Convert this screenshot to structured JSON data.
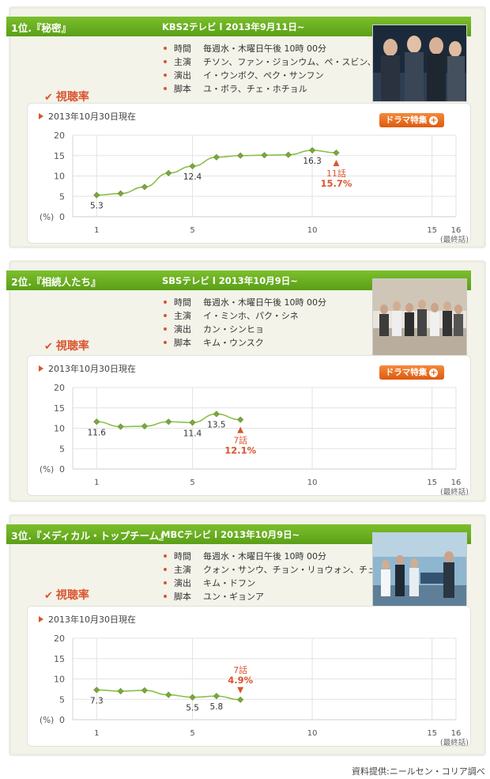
{
  "shows": [
    {
      "rank_title": "1位.『秘密』",
      "network": "KBS2テレビ l 2013年9月11日~",
      "info": [
        {
          "key": "時間",
          "value": "毎週水・木曜日午後 10時 00分"
        },
        {
          "key": "主演",
          "value": "チソン、ファン・ジョンウム、ペ・スビン、イ・ダヒ"
        },
        {
          "key": "演出",
          "value": "イ・ウンボク、ペク・サンフン"
        },
        {
          "key": "脚本",
          "value": "ユ・ボラ、チェ・ホチョル"
        }
      ],
      "rating_label": "視聴率",
      "as_of": "2013年10月30日現在",
      "feature_button": "ドラマ特集",
      "colors": {
        "accent": "#d9552f",
        "line": "#8bbf4a",
        "marker": "#7aa83a"
      }
    },
    {
      "rank_title": "2位.『相続人たち』",
      "network": "SBSテレビ l 2013年10月9日~",
      "info": [
        {
          "key": "時間",
          "value": "毎週水・木曜日午後 10時 00分"
        },
        {
          "key": "主演",
          "value": "イ・ミンホ、パク・シネ"
        },
        {
          "key": "演出",
          "value": "カン・シンヒョ"
        },
        {
          "key": "脚本",
          "value": "キム・ウンスク"
        }
      ],
      "rating_label": "視聴率",
      "as_of": "2013年10月30日現在",
      "feature_button": "ドラマ特集",
      "colors": {
        "accent": "#d9552f",
        "line": "#8bbf4a",
        "marker": "#7aa83a"
      }
    },
    {
      "rank_title": "3位.『メディカル・トップチーム』",
      "network": "MBCテレビ l 2013年10月9日~",
      "info": [
        {
          "key": "時間",
          "value": "毎週水・木曜日午後 10時 00分"
        },
        {
          "key": "主演",
          "value": "クォン・サンウ、チョン・リョウォン、チュ・ジフン"
        },
        {
          "key": "演出",
          "value": "キム・ドフン"
        },
        {
          "key": "脚本",
          "value": "ユン・ギョンア"
        }
      ],
      "rating_label": "視聴率",
      "as_of": "2013年10月30日現在",
      "feature_button": "",
      "colors": {
        "accent": "#d9552f",
        "line": "#8bbf4a",
        "marker": "#7aa83a"
      }
    }
  ],
  "source": "資料提供:ニールセン・コリア調べ",
  "chart_data": [
    {
      "type": "line",
      "x": [
        1,
        2,
        3,
        4,
        5,
        6,
        7,
        8,
        9,
        10,
        11
      ],
      "values": [
        5.3,
        5.7,
        7.3,
        10.7,
        12.4,
        14.6,
        15.0,
        15.1,
        15.2,
        16.3,
        15.7
      ],
      "point_labels": {
        "1": "5.3",
        "5": "12.4",
        "10": "16.3"
      },
      "highlight": {
        "x": 11,
        "episode": "11話",
        "value": "15.7%",
        "position": "below"
      },
      "xticks": [
        "1",
        "5",
        "10",
        "15",
        "16"
      ],
      "xlast_note": "(最終話)",
      "yticks": [
        "0",
        "5",
        "10",
        "15",
        "20"
      ],
      "ylabel": "(%)",
      "xlim": [
        0,
        16
      ],
      "ylim": [
        0,
        20
      ],
      "grid": true
    },
    {
      "type": "line",
      "x": [
        1,
        2,
        3,
        4,
        5,
        6,
        7
      ],
      "values": [
        11.6,
        10.4,
        10.5,
        11.6,
        11.4,
        13.5,
        12.1
      ],
      "point_labels": {
        "1": "11.6",
        "5": "11.4",
        "6": "13.5"
      },
      "highlight": {
        "x": 7,
        "episode": "7話",
        "value": "12.1%",
        "position": "below"
      },
      "xticks": [
        "1",
        "5",
        "10",
        "15",
        "16"
      ],
      "xlast_note": "(最終話)",
      "yticks": [
        "0",
        "5",
        "10",
        "15",
        "20"
      ],
      "ylabel": "(%)",
      "xlim": [
        0,
        16
      ],
      "ylim": [
        0,
        20
      ],
      "grid": true
    },
    {
      "type": "line",
      "x": [
        1,
        2,
        3,
        4,
        5,
        6,
        7
      ],
      "values": [
        7.3,
        7.0,
        7.2,
        6.1,
        5.5,
        5.8,
        4.9
      ],
      "point_labels": {
        "1": "7.3",
        "5": "5.5",
        "6": "5.8"
      },
      "highlight": {
        "x": 7,
        "episode": "7話",
        "value": "4.9%",
        "position": "above"
      },
      "xticks": [
        "1",
        "5",
        "10",
        "15",
        "16"
      ],
      "xlast_note": "(最終話)",
      "yticks": [
        "0",
        "5",
        "10",
        "15",
        "20"
      ],
      "ylabel": "(%)",
      "xlim": [
        0,
        16
      ],
      "ylim": [
        0,
        20
      ],
      "grid": true
    }
  ]
}
